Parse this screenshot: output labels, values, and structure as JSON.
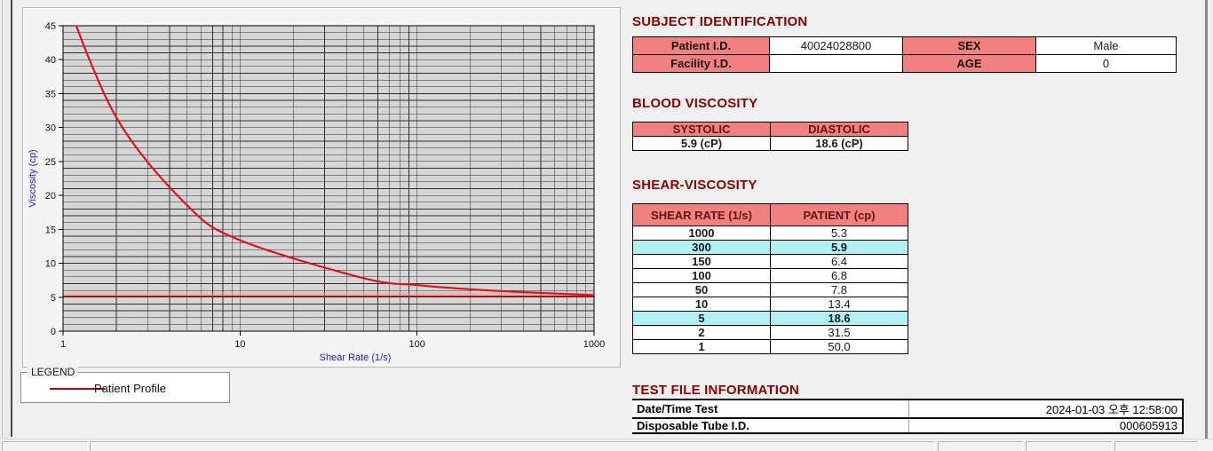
{
  "window": {
    "background": "#f0f0f0"
  },
  "chart_data": {
    "type": "line",
    "x": [
      1,
      2,
      5,
      10,
      50,
      100,
      150,
      300,
      1000
    ],
    "series": [
      {
        "name": "Patient Profile",
        "values": [
          50.0,
          31.5,
          18.6,
          13.4,
          7.8,
          6.8,
          6.4,
          5.9,
          5.3
        ],
        "color": "#dd1420"
      }
    ],
    "reference_line": {
      "y": 5.1,
      "color": "#a80f0f",
      "band_top": 5.65,
      "band_color": "rgba(240,150,150,0.45)"
    },
    "title": "",
    "xlabel": "Shear Rate (1/s)",
    "ylabel": "Viscosity (cp)",
    "x_scale": "log",
    "xlim": [
      1,
      1000
    ],
    "ylim": [
      0,
      45
    ],
    "y_major_step": 5,
    "y_minor_step": 1,
    "x_tick_labels": [
      "1",
      "10",
      "100",
      "1000"
    ],
    "axis_label_color": "#1f1fbf",
    "tick_label_color": "#111111",
    "plot_bg": "#d6d6d6",
    "grid": true,
    "grid_color": "#2e2e2e",
    "legend_position": "below-left"
  },
  "legend": {
    "box_label": "LEGEND",
    "series_label": "Patient Profile",
    "line_color": "#c00000"
  },
  "subject_identification": {
    "title": "SUBJECT IDENTIFICATION",
    "rows": [
      {
        "label1": "Patient I.D.",
        "value1": "40024028800",
        "label2": "SEX",
        "value2": "Male"
      },
      {
        "label1": "Facility I.D.",
        "value1": "",
        "label2": "AGE",
        "value2": "0"
      }
    ]
  },
  "blood_viscosity": {
    "title": "BLOOD VISCOSITY",
    "headers": [
      "SYSTOLIC",
      "DIASTOLIC"
    ],
    "values": [
      "5.9 (cP)",
      "18.6 (cP)"
    ]
  },
  "shear_viscosity": {
    "title": "SHEAR-VISCOSITY",
    "headers": [
      "SHEAR RATE (1/s)",
      "PATIENT (cp)"
    ],
    "rows": [
      {
        "rate": "1000",
        "value": "5.3",
        "highlight": false
      },
      {
        "rate": "300",
        "value": "5.9",
        "highlight": true
      },
      {
        "rate": "150",
        "value": "6.4",
        "highlight": false
      },
      {
        "rate": "100",
        "value": "6.8",
        "highlight": false
      },
      {
        "rate": "50",
        "value": "7.8",
        "highlight": false
      },
      {
        "rate": "10",
        "value": "13.4",
        "highlight": false
      },
      {
        "rate": "5",
        "value": "18.6",
        "highlight": true
      },
      {
        "rate": "2",
        "value": "31.5",
        "highlight": false
      },
      {
        "rate": "1",
        "value": "50.0",
        "highlight": false
      }
    ]
  },
  "test_file_information": {
    "title": "TEST FILE INFORMATION",
    "rows": [
      {
        "label": "Date/Time Test",
        "value": "2024-01-03  오후 12:58:00"
      },
      {
        "label": "Disposable Tube I.D.",
        "value": "000605913"
      }
    ]
  },
  "colors": {
    "section_title": "#8b0000",
    "table_header_bg": "#f38080",
    "highlight_row_bg": "#b2f1f1",
    "curve_red": "#dd1420"
  }
}
